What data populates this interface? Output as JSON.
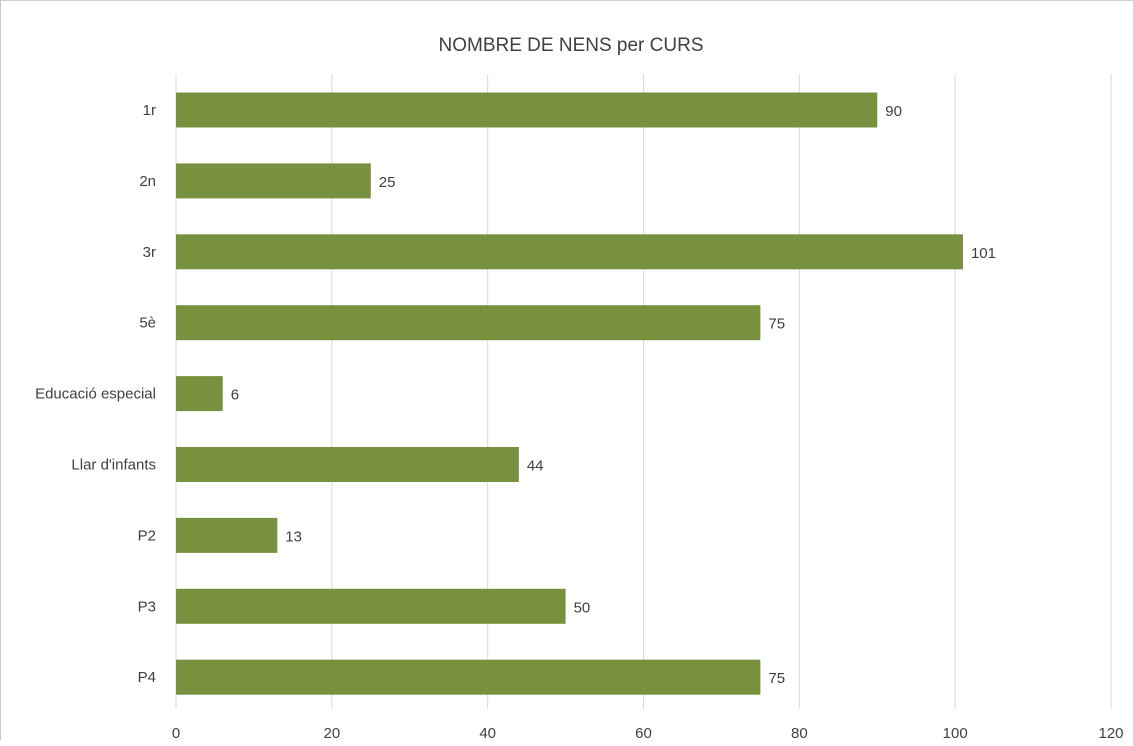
{
  "chart_data": {
    "type": "bar",
    "orientation": "horizontal",
    "title": "NOMBRE DE NENS per CURS",
    "xlabel": "",
    "ylabel": "",
    "categories": [
      "1r",
      "2n",
      "3r",
      "5è",
      "Educació especial",
      "Llar d'infants",
      "P2",
      "P3",
      "P4"
    ],
    "values": [
      90,
      25,
      101,
      75,
      6,
      44,
      13,
      50,
      75
    ],
    "xlim": [
      0,
      120
    ],
    "ticks": [
      0,
      20,
      40,
      60,
      80,
      100,
      120
    ],
    "grid": true,
    "data_labels": true,
    "legend": "none",
    "bar_color": "#78913f"
  }
}
